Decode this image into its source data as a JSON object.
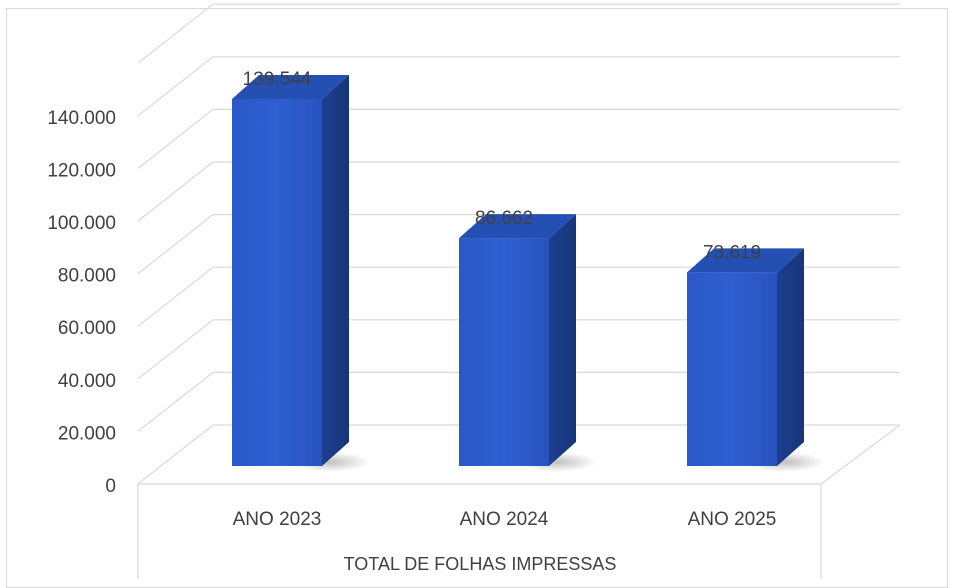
{
  "chart_data": {
    "type": "bar",
    "style": "3d-column",
    "title": "",
    "xlabel": "TOTAL DE FOLHAS IMPRESSAS",
    "ylabel": "",
    "categories": [
      "ANO 2023",
      "ANO 2024",
      "ANO 2025"
    ],
    "series": [
      {
        "values": [
          139544,
          86662,
          73619
        ]
      }
    ],
    "data_labels": [
      "139.544",
      "86.662",
      "73.619"
    ],
    "y_ticks": [
      0,
      20000,
      40000,
      60000,
      80000,
      100000,
      120000,
      140000
    ],
    "y_tick_labels": [
      "0",
      "20.000",
      "40.000",
      "60.000",
      "80.000",
      "100.000",
      "120.000",
      "140.000"
    ],
    "ylim": [
      0,
      140000
    ],
    "grid": true,
    "legend": "none",
    "colors": {
      "bar_front": "#2f5fd0",
      "bar_side": "#1d3f8f",
      "bar_top": "#244fb3",
      "gridline": "#d9d9d9",
      "text": "#404040"
    }
  }
}
